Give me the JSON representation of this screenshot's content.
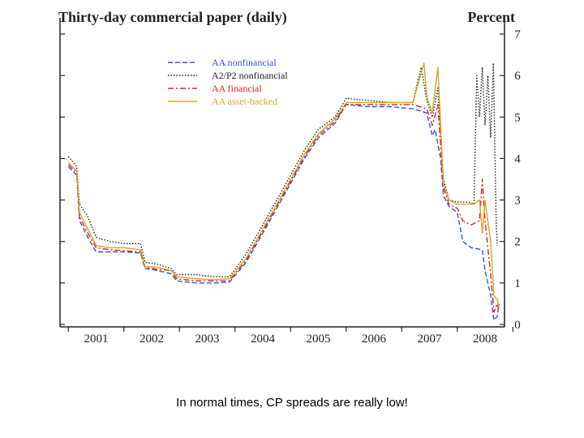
{
  "caption": "In normal times, CP spreads are really low!",
  "chart_data": {
    "type": "line",
    "title": "Thirty-day commercial paper (daily)",
    "ylabel": "Percent",
    "xlabel": "",
    "ylim": [
      0,
      7
    ],
    "xlim": [
      2000.85,
      2008.85
    ],
    "y_ticks": [
      "0",
      "1",
      "2",
      "3",
      "4",
      "5",
      "6",
      "7"
    ],
    "x_ticks": [
      "2001",
      "2002",
      "2003",
      "2004",
      "2005",
      "2006",
      "2007",
      "2008"
    ],
    "legend_position": "top-left",
    "series": [
      {
        "name": "AA nonfinancial",
        "color": "#3a4fd8",
        "style": "dashed",
        "points": [
          [
            2001.0,
            3.8
          ],
          [
            2001.15,
            3.6
          ],
          [
            2001.2,
            2.5
          ],
          [
            2001.35,
            2.1
          ],
          [
            2001.5,
            1.75
          ],
          [
            2001.75,
            1.75
          ],
          [
            2002.0,
            1.75
          ],
          [
            2002.3,
            1.72
          ],
          [
            2002.38,
            1.35
          ],
          [
            2002.6,
            1.3
          ],
          [
            2002.85,
            1.22
          ],
          [
            2002.95,
            1.05
          ],
          [
            2003.3,
            1.0
          ],
          [
            2003.6,
            1.0
          ],
          [
            2003.9,
            1.02
          ],
          [
            2004.2,
            1.5
          ],
          [
            2004.5,
            2.2
          ],
          [
            2004.75,
            2.8
          ],
          [
            2005.0,
            3.4
          ],
          [
            2005.25,
            4.0
          ],
          [
            2005.5,
            4.5
          ],
          [
            2005.8,
            4.85
          ],
          [
            2006.0,
            5.3
          ],
          [
            2006.4,
            5.25
          ],
          [
            2006.8,
            5.25
          ],
          [
            2007.2,
            5.2
          ],
          [
            2007.45,
            5.1
          ],
          [
            2007.55,
            4.55
          ],
          [
            2007.6,
            4.7
          ],
          [
            2007.7,
            4.0
          ],
          [
            2007.75,
            3.1
          ],
          [
            2007.85,
            2.85
          ],
          [
            2008.0,
            2.7
          ],
          [
            2008.1,
            2.0
          ],
          [
            2008.25,
            1.85
          ],
          [
            2008.45,
            1.8
          ],
          [
            2008.5,
            1.3
          ],
          [
            2008.6,
            0.7
          ],
          [
            2008.66,
            0.1
          ],
          [
            2008.72,
            0.2
          ],
          [
            2008.75,
            0.5
          ]
        ]
      },
      {
        "name": "A2/P2 nonfinancial",
        "color": "#222222",
        "style": "dotted",
        "points": [
          [
            2001.0,
            4.05
          ],
          [
            2001.15,
            3.8
          ],
          [
            2001.2,
            2.9
          ],
          [
            2001.35,
            2.6
          ],
          [
            2001.5,
            2.1
          ],
          [
            2001.75,
            2.0
          ],
          [
            2002.0,
            1.95
          ],
          [
            2002.3,
            1.95
          ],
          [
            2002.38,
            1.5
          ],
          [
            2002.6,
            1.45
          ],
          [
            2002.85,
            1.35
          ],
          [
            2002.95,
            1.2
          ],
          [
            2003.3,
            1.2
          ],
          [
            2003.6,
            1.15
          ],
          [
            2003.9,
            1.15
          ],
          [
            2004.2,
            1.7
          ],
          [
            2004.5,
            2.4
          ],
          [
            2004.75,
            3.0
          ],
          [
            2005.0,
            3.6
          ],
          [
            2005.25,
            4.2
          ],
          [
            2005.5,
            4.7
          ],
          [
            2005.8,
            5.0
          ],
          [
            2006.0,
            5.45
          ],
          [
            2006.4,
            5.4
          ],
          [
            2006.8,
            5.35
          ],
          [
            2007.2,
            5.35
          ],
          [
            2007.35,
            6.2
          ],
          [
            2007.45,
            5.4
          ],
          [
            2007.55,
            5.0
          ],
          [
            2007.65,
            5.7
          ],
          [
            2007.75,
            3.5
          ],
          [
            2007.85,
            3.0
          ],
          [
            2008.0,
            2.95
          ],
          [
            2008.2,
            2.95
          ],
          [
            2008.3,
            2.9
          ],
          [
            2008.35,
            6.0
          ],
          [
            2008.4,
            5.0
          ],
          [
            2008.45,
            6.2
          ],
          [
            2008.5,
            4.8
          ],
          [
            2008.55,
            6.0
          ],
          [
            2008.6,
            4.5
          ],
          [
            2008.65,
            6.3
          ],
          [
            2008.7,
            2.5
          ],
          [
            2008.72,
            1.9
          ]
        ]
      },
      {
        "name": "AA financial",
        "color": "#e02020",
        "style": "dash-dot",
        "points": [
          [
            2001.0,
            3.85
          ],
          [
            2001.15,
            3.65
          ],
          [
            2001.2,
            2.6
          ],
          [
            2001.35,
            2.2
          ],
          [
            2001.5,
            1.85
          ],
          [
            2001.75,
            1.8
          ],
          [
            2002.0,
            1.78
          ],
          [
            2002.3,
            1.75
          ],
          [
            2002.38,
            1.38
          ],
          [
            2002.6,
            1.33
          ],
          [
            2002.85,
            1.3
          ],
          [
            2002.95,
            1.1
          ],
          [
            2003.3,
            1.05
          ],
          [
            2003.6,
            1.05
          ],
          [
            2003.9,
            1.05
          ],
          [
            2004.2,
            1.55
          ],
          [
            2004.5,
            2.25
          ],
          [
            2004.75,
            2.85
          ],
          [
            2005.0,
            3.45
          ],
          [
            2005.25,
            4.05
          ],
          [
            2005.5,
            4.55
          ],
          [
            2005.8,
            4.9
          ],
          [
            2006.0,
            5.3
          ],
          [
            2006.4,
            5.3
          ],
          [
            2006.8,
            5.3
          ],
          [
            2007.2,
            5.3
          ],
          [
            2007.45,
            5.2
          ],
          [
            2007.55,
            4.8
          ],
          [
            2007.65,
            5.3
          ],
          [
            2007.75,
            3.3
          ],
          [
            2007.85,
            2.9
          ],
          [
            2008.0,
            2.8
          ],
          [
            2008.1,
            2.5
          ],
          [
            2008.25,
            2.4
          ],
          [
            2008.4,
            2.5
          ],
          [
            2008.45,
            3.5
          ],
          [
            2008.5,
            2.5
          ],
          [
            2008.6,
            1.2
          ],
          [
            2008.66,
            0.3
          ],
          [
            2008.72,
            0.5
          ],
          [
            2008.75,
            0.3
          ]
        ]
      },
      {
        "name": "AA asset-backed",
        "color": "#d9a520",
        "style": "solid",
        "points": [
          [
            2001.0,
            3.9
          ],
          [
            2001.15,
            3.7
          ],
          [
            2001.2,
            2.7
          ],
          [
            2001.35,
            2.3
          ],
          [
            2001.5,
            1.9
          ],
          [
            2001.75,
            1.85
          ],
          [
            2002.0,
            1.85
          ],
          [
            2002.3,
            1.8
          ],
          [
            2002.38,
            1.4
          ],
          [
            2002.6,
            1.38
          ],
          [
            2002.85,
            1.3
          ],
          [
            2002.95,
            1.15
          ],
          [
            2003.3,
            1.1
          ],
          [
            2003.6,
            1.08
          ],
          [
            2003.9,
            1.1
          ],
          [
            2004.2,
            1.6
          ],
          [
            2004.5,
            2.3
          ],
          [
            2004.75,
            2.9
          ],
          [
            2005.0,
            3.5
          ],
          [
            2005.25,
            4.1
          ],
          [
            2005.5,
            4.6
          ],
          [
            2005.8,
            4.95
          ],
          [
            2006.0,
            5.35
          ],
          [
            2006.4,
            5.35
          ],
          [
            2006.8,
            5.35
          ],
          [
            2007.2,
            5.35
          ],
          [
            2007.4,
            6.3
          ],
          [
            2007.45,
            5.5
          ],
          [
            2007.55,
            5.1
          ],
          [
            2007.65,
            6.2
          ],
          [
            2007.75,
            3.4
          ],
          [
            2007.85,
            3.0
          ],
          [
            2008.0,
            2.9
          ],
          [
            2008.15,
            2.9
          ],
          [
            2008.3,
            2.9
          ],
          [
            2008.4,
            3.0
          ],
          [
            2008.45,
            2.2
          ],
          [
            2008.5,
            3.0
          ],
          [
            2008.6,
            2.0
          ],
          [
            2008.66,
            0.7
          ],
          [
            2008.72,
            0.6
          ],
          [
            2008.75,
            0.4
          ]
        ]
      }
    ]
  }
}
